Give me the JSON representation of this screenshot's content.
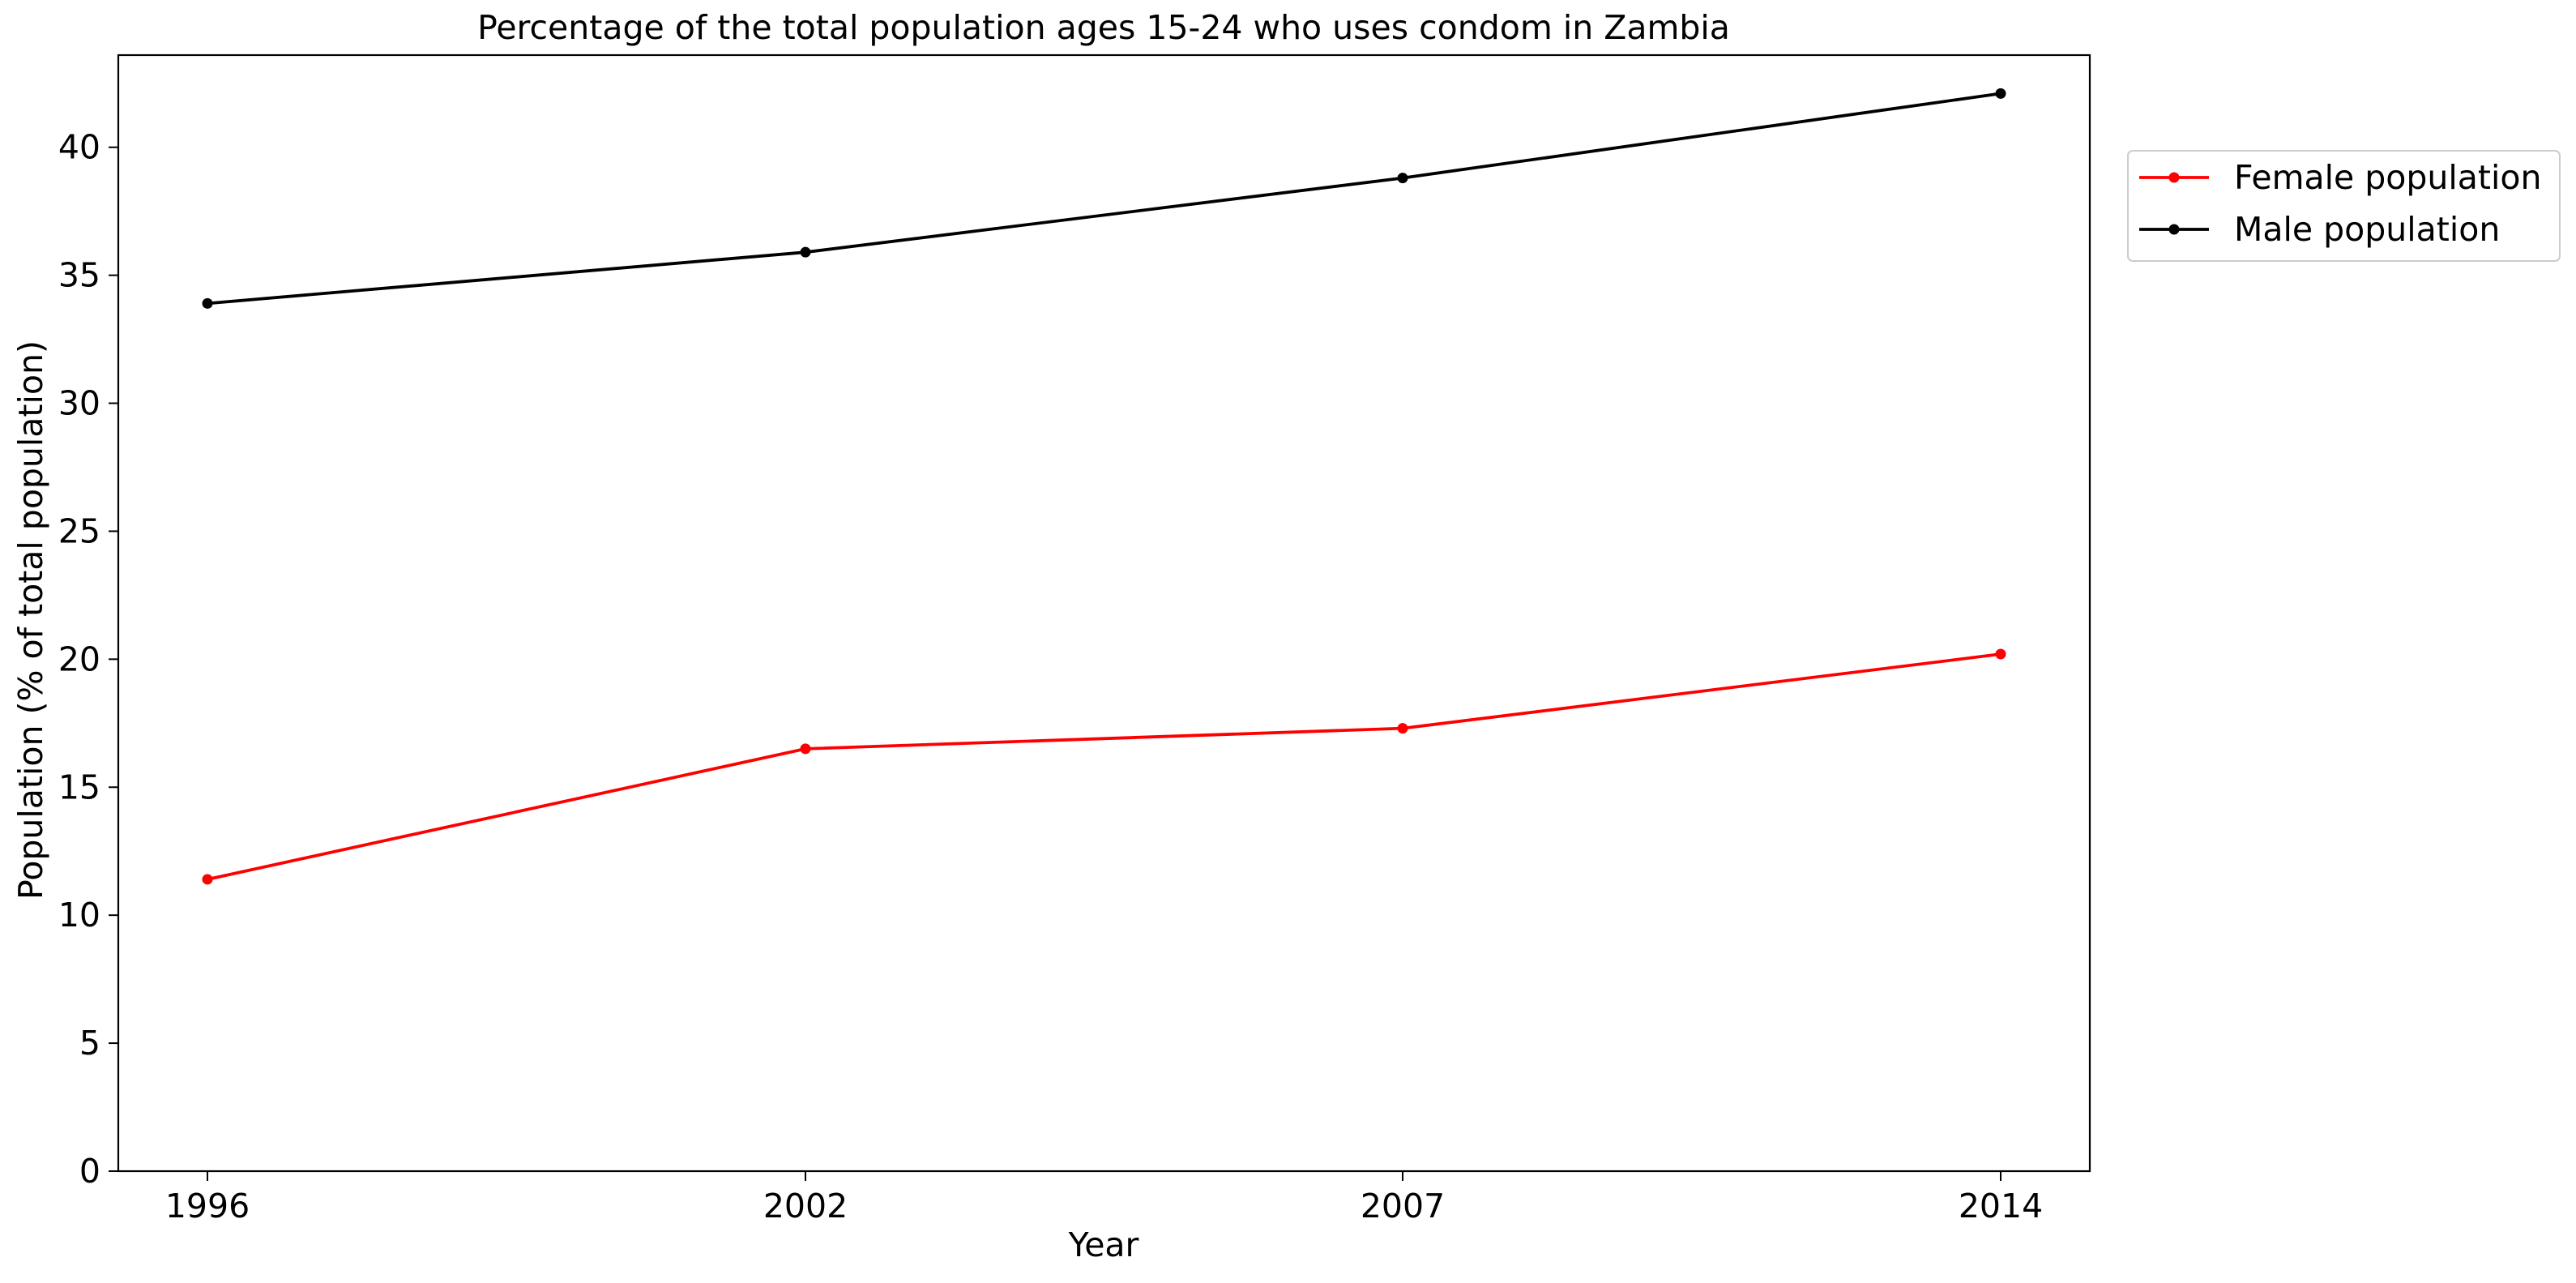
{
  "chart_data": {
    "type": "line",
    "title": "Percentage of the total population ages 15-24 who uses condom in Zambia",
    "xlabel": "Year",
    "ylabel": "Population (% of total population)",
    "categories": [
      "1996",
      "2002",
      "2007",
      "2014"
    ],
    "ylim": [
      0,
      43.6
    ],
    "yticks": [
      0,
      5,
      10,
      15,
      20,
      25,
      30,
      35,
      40
    ],
    "grid": false,
    "legend_position": "outside-top-right",
    "series": [
      {
        "name": "Female population",
        "color": "#ff0000",
        "values": [
          11.4,
          16.5,
          17.3,
          20.2
        ]
      },
      {
        "name": "Male population",
        "color": "#000000",
        "values": [
          33.9,
          35.9,
          38.8,
          42.1
        ]
      }
    ]
  }
}
